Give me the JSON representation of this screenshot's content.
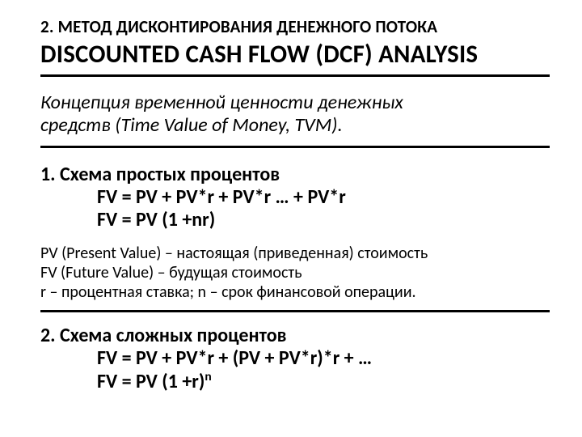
{
  "heading_small": "2. МЕТОД ДИСКОНТИРОВАНИЯ ДЕНЕЖНОГО ПОТОКА",
  "heading_big": "DISCOUNTED CASH FLOW (DCF) ANALYSIS",
  "concept_line1": "Концепция временной ценности денежных",
  "concept_line2": "средств (Time Value of Money, TVM).",
  "section1": {
    "title": "1.  Схема простых процентов",
    "formula1": "FV = PV + PV*r + PV*r … + PV*r",
    "formula2": "FV = PV (1 +nr)"
  },
  "def1": "PV (Present Value) – настоящая (приведенная) стоимость",
  "def2": "FV (Future Value) – будущая стоимость",
  "def3": "r – процентная ставка; n – срок финансовой операции.",
  "section2": {
    "title": "2.  Схема сложных процентов",
    "formula1": "FV = PV + PV*r + (PV + PV*r)*r + …",
    "formula2_pre": "FV = PV (1 +r)",
    "formula2_sup": "n"
  },
  "colors": {
    "text": "#000000",
    "background": "#ffffff",
    "rule": "#000000"
  },
  "typography": {
    "heading_small_pt": 21,
    "heading_big_pt": 31,
    "body_pt": 24,
    "def_pt": 20,
    "font_family": "Calibri"
  }
}
